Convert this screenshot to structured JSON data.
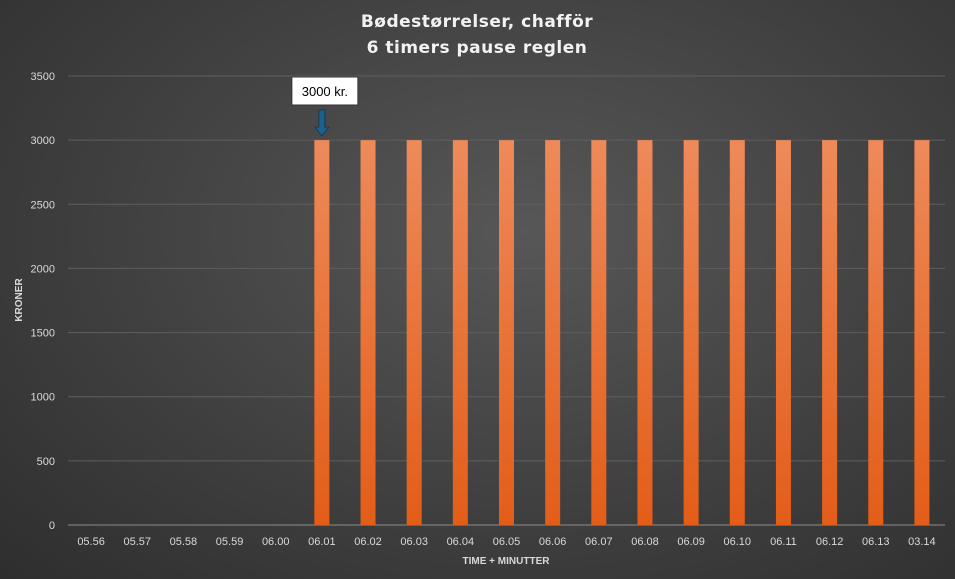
{
  "chart_data": {
    "type": "bar",
    "title": [
      "Bødestørrelser, chafför",
      "6 timers pause reglen"
    ],
    "xlabel": "TIME + MINUTTER",
    "ylabel": "KRONER",
    "ylim": [
      0,
      3500
    ],
    "yticks": [
      0,
      500,
      1000,
      1500,
      2000,
      2500,
      3000,
      3500
    ],
    "grid": true,
    "categories": [
      "05.56",
      "05.57",
      "05.58",
      "05.59",
      "06.00",
      "06.01",
      "06.02",
      "06.03",
      "06.04",
      "06.05",
      "06.06",
      "06.07",
      "06.08",
      "06.09",
      "06.10",
      "06.11",
      "06.12",
      "06.13",
      "03.14"
    ],
    "values": [
      0,
      0,
      0,
      0,
      0,
      3000,
      3000,
      3000,
      3000,
      3000,
      3000,
      3000,
      3000,
      3000,
      3000,
      3000,
      3000,
      3000,
      3000
    ],
    "bar_color_top": "#ee8a5a",
    "bar_color_bottom": "#e35d18",
    "annotation": {
      "text": "3000 kr.",
      "category": "06.01",
      "arrow_color": "#1f5f8b"
    }
  }
}
